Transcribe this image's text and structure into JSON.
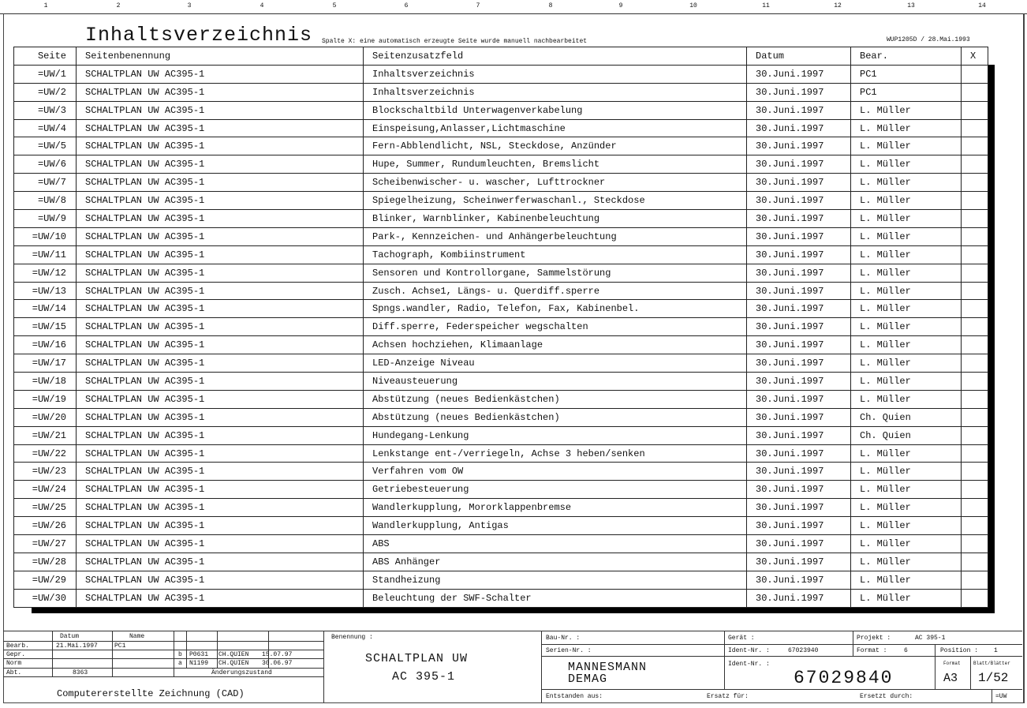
{
  "ruler": [
    "1",
    "2",
    "3",
    "4",
    "5",
    "6",
    "7",
    "8",
    "9",
    "10",
    "11",
    "12",
    "13",
    "14"
  ],
  "header": {
    "title": "Inhaltsverzeichnis",
    "note": "Spalte X: eine automatisch erzeugte Seite wurde manuell nachbearbeitet",
    "ref": "WUP1205D / 28.Mai.1993"
  },
  "table": {
    "columns": [
      "Seite",
      "Seitenbenennung",
      "Seitenzusatzfeld",
      "Datum",
      "Bear.",
      "X"
    ],
    "rows": [
      [
        "=UW/1",
        "SCHALTPLAN UW AC395-1",
        "Inhaltsverzeichnis",
        "30.Juni.1997",
        "PC1",
        ""
      ],
      [
        "=UW/2",
        "SCHALTPLAN UW AC395-1",
        "Inhaltsverzeichnis",
        "30.Juni.1997",
        "PC1",
        ""
      ],
      [
        "=UW/3",
        "SCHALTPLAN UW AC395-1",
        "Blockschaltbild Unterwagenverkabelung",
        "30.Juni.1997",
        "L. Müller",
        ""
      ],
      [
        "=UW/4",
        "SCHALTPLAN UW AC395-1",
        "Einspeisung,Anlasser,Lichtmaschine",
        "30.Juni.1997",
        "L. Müller",
        ""
      ],
      [
        "=UW/5",
        "SCHALTPLAN UW AC395-1",
        "Fern-Abblendlicht, NSL, Steckdose, Anzünder",
        "30.Juni.1997",
        "L. Müller",
        ""
      ],
      [
        "=UW/6",
        "SCHALTPLAN UW AC395-1",
        "Hupe, Summer, Rundumleuchten, Bremslicht",
        "30.Juni.1997",
        "L. Müller",
        ""
      ],
      [
        "=UW/7",
        "SCHALTPLAN UW AC395-1",
        "Scheibenwischer- u. wascher, Lufttrockner",
        "30.Juni.1997",
        "L. Müller",
        ""
      ],
      [
        "=UW/8",
        "SCHALTPLAN UW AC395-1",
        "Spiegelheizung, Scheinwerferwaschanl., Steckdose",
        "30.Juni.1997",
        "L. Müller",
        ""
      ],
      [
        "=UW/9",
        "SCHALTPLAN UW AC395-1",
        "Blinker, Warnblinker, Kabinenbeleuchtung",
        "30.Juni.1997",
        "L. Müller",
        ""
      ],
      [
        "=UW/10",
        "SCHALTPLAN UW AC395-1",
        "Park-, Kennzeichen- und Anhängerbeleuchtung",
        "30.Juni.1997",
        "L. Müller",
        ""
      ],
      [
        "=UW/11",
        "SCHALTPLAN UW AC395-1",
        "Tachograph, Kombiinstrument",
        "30.Juni.1997",
        "L. Müller",
        ""
      ],
      [
        "=UW/12",
        "SCHALTPLAN UW AC395-1",
        "Sensoren und Kontrollorgane, Sammelstörung",
        "30.Juni.1997",
        "L. Müller",
        ""
      ],
      [
        "=UW/13",
        "SCHALTPLAN UW AC395-1",
        "Zusch. Achse1, Längs- u. Querdiff.sperre",
        "30.Juni.1997",
        "L. Müller",
        ""
      ],
      [
        "=UW/14",
        "SCHALTPLAN UW AC395-1",
        "Spngs.wandler, Radio, Telefon, Fax, Kabinenbel.",
        "30.Juni.1997",
        "L. Müller",
        ""
      ],
      [
        "=UW/15",
        "SCHALTPLAN UW AC395-1",
        "Diff.sperre, Federspeicher wegschalten",
        "30.Juni.1997",
        "L. Müller",
        ""
      ],
      [
        "=UW/16",
        "SCHALTPLAN UW AC395-1",
        "Achsen hochziehen, Klimaanlage",
        "30.Juni.1997",
        "L. Müller",
        ""
      ],
      [
        "=UW/17",
        "SCHALTPLAN UW AC395-1",
        "LED-Anzeige Niveau",
        "30.Juni.1997",
        "L. Müller",
        ""
      ],
      [
        "=UW/18",
        "SCHALTPLAN UW AC395-1",
        "Niveausteuerung",
        "30.Juni.1997",
        "L. Müller",
        ""
      ],
      [
        "=UW/19",
        "SCHALTPLAN UW AC395-1",
        "Abstützung (neues Bedienkästchen)",
        "30.Juni.1997",
        "L. Müller",
        ""
      ],
      [
        "=UW/20",
        "SCHALTPLAN UW AC395-1",
        "Abstützung (neues Bedienkästchen)",
        "30.Juni.1997",
        "Ch. Quien",
        ""
      ],
      [
        "=UW/21",
        "SCHALTPLAN UW AC395-1",
        "Hundegang-Lenkung",
        "30.Juni.1997",
        "Ch. Quien",
        ""
      ],
      [
        "=UW/22",
        "SCHALTPLAN UW AC395-1",
        "Lenkstange ent-/verriegeln, Achse 3 heben/senken",
        "30.Juni.1997",
        "L. Müller",
        ""
      ],
      [
        "=UW/23",
        "SCHALTPLAN UW AC395-1",
        "Verfahren vom OW",
        "30.Juni.1997",
        "L. Müller",
        ""
      ],
      [
        "=UW/24",
        "SCHALTPLAN UW AC395-1",
        "Getriebesteuerung",
        "30.Juni.1997",
        "L. Müller",
        ""
      ],
      [
        "=UW/25",
        "SCHALTPLAN UW AC395-1",
        "Wandlerkupplung, Mororklappenbremse",
        "30.Juni.1997",
        "L. Müller",
        ""
      ],
      [
        "=UW/26",
        "SCHALTPLAN UW AC395-1",
        "Wandlerkupplung, Antigas",
        "30.Juni.1997",
        "L. Müller",
        ""
      ],
      [
        "=UW/27",
        "SCHALTPLAN UW AC395-1",
        "ABS",
        "30.Juni.1997",
        "L. Müller",
        ""
      ],
      [
        "=UW/28",
        "SCHALTPLAN UW AC395-1",
        "ABS Anhänger",
        "30.Juni.1997",
        "L. Müller",
        ""
      ],
      [
        "=UW/29",
        "SCHALTPLAN UW AC395-1",
        "Standheizung",
        "30.Juni.1997",
        "L. Müller",
        ""
      ],
      [
        "=UW/30",
        "SCHALTPLAN UW AC395-1",
        "Beleuchtung der SWF-Schalter",
        "30.Juni.1997",
        "L. Müller",
        ""
      ]
    ]
  },
  "titleblock": {
    "datum_label": "Datum",
    "name_label": "Name",
    "bearb_label": "Bearb.",
    "bearb_datum": "21.Mai.1997",
    "bearb_name": "PC1",
    "gepr_label": "Gepr.",
    "norm_label": "Norm",
    "abt_label": "Abt.",
    "abt_value": "8363",
    "rev_b": [
      "b",
      "P0631",
      "CH.QUIEN",
      "15.07.97"
    ],
    "rev_a": [
      "a",
      "N1199",
      "CH.QUIEN",
      "30.06.97"
    ],
    "aenderung_label": "Änderungszustand",
    "cad_label": "Computererstellte Zeichnung (CAD)",
    "benennung_label": "Benennung :",
    "benennung_line1": "SCHALTPLAN UW",
    "benennung_line2": "AC 395-1",
    "baunr_label": "Bau-Nr. :",
    "seriennr_label": "Serien-Nr. :",
    "company_line1": "MANNESMANN",
    "company_line2": "DEMAG",
    "geraet_label": "Gerät :",
    "identnr_label": "Ident-Nr. :",
    "identnr_small": "67023940",
    "identnr2_label": "Ident-Nr. :",
    "identnr_big": "67029840",
    "projekt_label": "Projekt :",
    "projekt_value": "AC 395-1",
    "format_label": "Format :",
    "format_value": "6",
    "position_label": "Position :",
    "position_value": "1",
    "format2_label": "Format",
    "format2_value": "A3",
    "blatt_label": "Blatt/Blätter",
    "blatt_value": "1/52",
    "entstanden_label": "Entstanden aus:",
    "ersatz_label": "Ersatz für:",
    "ersetzt_label": "Ersetzt durch:",
    "suffix": "=UW"
  }
}
